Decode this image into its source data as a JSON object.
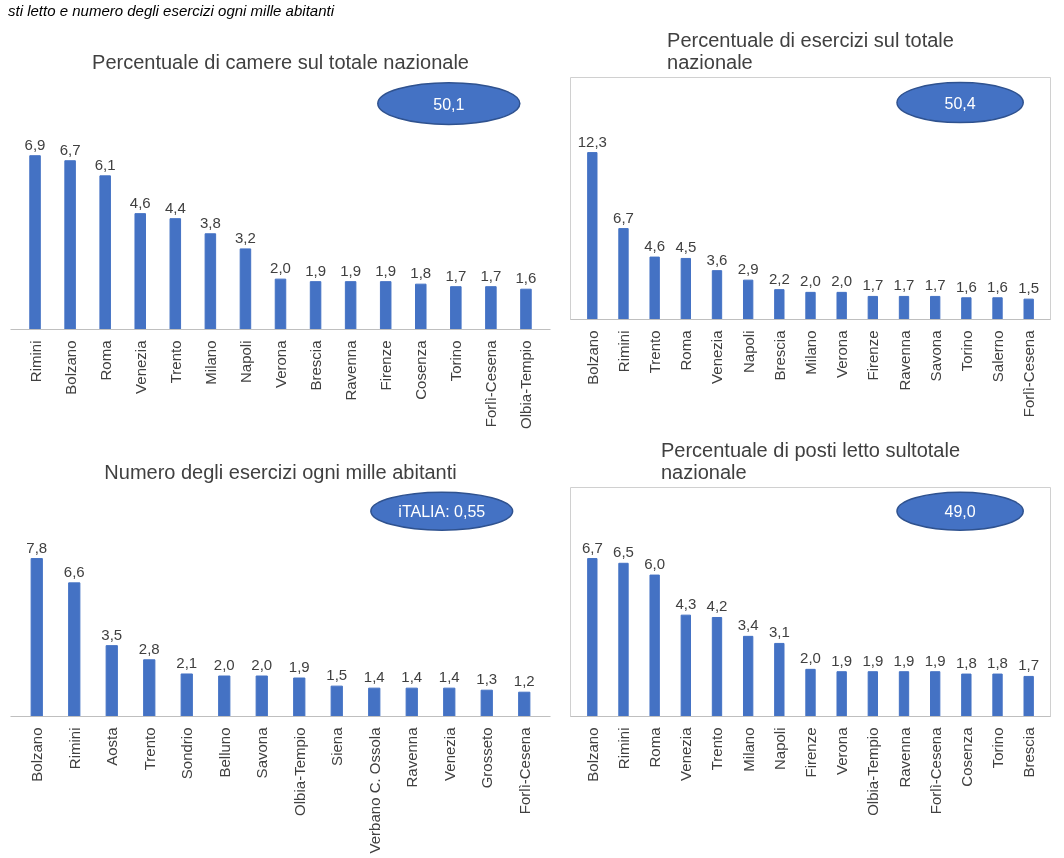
{
  "chart_data": [
    {
      "type": "bar",
      "title": "Percentuale di camere sul totale nazionale",
      "categories": [
        "Rimini",
        "Bolzano",
        "Roma",
        "Venezia",
        "Trento",
        "Milano",
        "Napoli",
        "Verona",
        "Brescia",
        "Ravenna",
        "Firenze",
        "Cosenza",
        "Torino",
        "Forlì-Cesena",
        "Olbia-Tempio"
      ],
      "values": [
        6.9,
        6.7,
        6.1,
        4.6,
        4.4,
        3.8,
        3.2,
        2.0,
        1.9,
        1.9,
        1.9,
        1.8,
        1.7,
        1.7,
        1.6
      ],
      "value_labels": [
        "6,9",
        "6,7",
        "6,1",
        "4,6",
        "4,4",
        "3,8",
        "3,2",
        "2,0",
        "1,9",
        "1,9",
        "1,9",
        "1,8",
        "1,7",
        "1,7",
        "1,6"
      ],
      "color": "#4472c4",
      "annotations": [
        "50,1",
        "sti letto e numero degli esercizi ogni mille abitanti"
      ]
    },
    {
      "type": "bar",
      "title": "Percentuale di esercizi sul totale nazionale",
      "categories": [
        "Bolzano",
        "Rimini",
        "Trento",
        "Roma",
        "Venezia",
        "Napoli",
        "Brescia",
        "Milano",
        "Verona",
        "Firenze",
        "Ravenna",
        "Savona",
        "Torino",
        "Salerno",
        "Forlì-Cesena"
      ],
      "values": [
        12.3,
        6.7,
        4.6,
        4.5,
        3.6,
        2.9,
        2.2,
        2.0,
        2.0,
        1.7,
        1.7,
        1.7,
        1.6,
        1.6,
        1.5
      ],
      "value_labels": [
        "12,3",
        "6,7",
        "4,6",
        "4,5",
        "3,6",
        "2,9",
        "2,2",
        "2,0",
        "2,0",
        "1,7",
        "1,7",
        "1,7",
        "1,6",
        "1,6",
        "1,5"
      ],
      "color": "#4472c4",
      "annotations": [
        "50,4"
      ]
    },
    {
      "type": "bar",
      "title": "Numero degli esercizi ogni mille abitanti",
      "categories": [
        "Bolzano",
        "Rimini",
        "Aosta",
        "Trento",
        "Sondrio",
        "Belluno",
        "Savona",
        "Olbia-Tempio",
        "Siena",
        "Verbano C. Ossola",
        "Ravenna",
        "Venezia",
        "Grosseto",
        "Forlì-Cesena"
      ],
      "values": [
        7.8,
        6.6,
        3.5,
        2.8,
        2.1,
        2.0,
        2.0,
        1.9,
        1.5,
        1.4,
        1.4,
        1.4,
        1.3,
        1.2
      ],
      "value_labels": [
        "7,8",
        "6,6",
        "3,5",
        "2,8",
        "2,1",
        "2,0",
        "2,0",
        "1,9",
        "1,5",
        "1,4",
        "1,4",
        "1,4",
        "1,3",
        "1,2"
      ],
      "color": "#4472c4",
      "annotations": [
        "iTALIA: 0,55"
      ]
    },
    {
      "type": "bar",
      "title": "Percentuale di posti letto sultotale nazionale",
      "categories": [
        "Bolzano",
        "Rimini",
        "Roma",
        "Venezia",
        "Trento",
        "Milano",
        "Napoli",
        "Firenze",
        "Verona",
        "Olbia-Tempio",
        "Ravenna",
        "Forlì-Cesena",
        "Cosenza",
        "Torino",
        "Brescia"
      ],
      "values": [
        6.7,
        6.5,
        6.0,
        4.3,
        4.2,
        3.4,
        3.1,
        2.0,
        1.9,
        1.9,
        1.9,
        1.9,
        1.8,
        1.8,
        1.7
      ],
      "value_labels": [
        "6,7",
        "6,5",
        "6,0",
        "4,3",
        "4,2",
        "3,4",
        "3,1",
        "2,0",
        "1,9",
        "1,9",
        "1,9",
        "1,9",
        "1,8",
        "1,8",
        "1,7"
      ],
      "color": "#4472c4",
      "annotations": [
        "49,0"
      ]
    }
  ]
}
